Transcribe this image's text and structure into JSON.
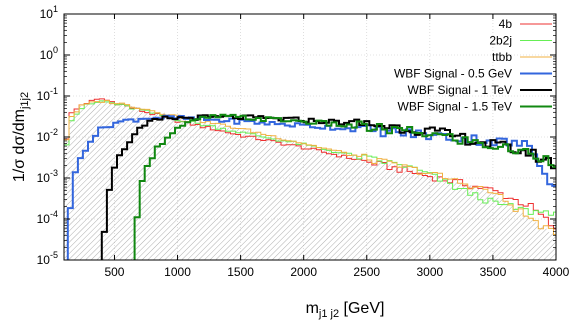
{
  "chart_data": {
    "type": "histogram",
    "x_label": {
      "main": "m",
      "sub": "j1 j2",
      "unit": " [GeV]"
    },
    "y_label": {
      "main": "1/σ dσ/dm",
      "sub": "j1j2"
    },
    "xlim": [
      100,
      4000
    ],
    "ylim": [
      1e-05,
      10
    ],
    "y_scale": "log",
    "x_ticks": [
      {
        "value": 500,
        "label": "500"
      },
      {
        "value": 1000,
        "label": "1000"
      },
      {
        "value": 1500,
        "label": "1500"
      },
      {
        "value": 2000,
        "label": "2000"
      },
      {
        "value": 2500,
        "label": "2500"
      },
      {
        "value": 3000,
        "label": "3000"
      },
      {
        "value": 3500,
        "label": "3500"
      },
      {
        "value": 4000,
        "label": "4000"
      }
    ],
    "y_ticks": [
      {
        "value": 10,
        "exp": "1"
      },
      {
        "value": 1,
        "exp": "0"
      },
      {
        "value": 0.1,
        "exp": "-1"
      },
      {
        "value": 0.01,
        "exp": "-2"
      },
      {
        "value": 0.001,
        "exp": "-3"
      },
      {
        "value": 0.0001,
        "exp": "-4"
      },
      {
        "value": 1e-05,
        "exp": "-5"
      }
    ],
    "y_tick_base": "10",
    "legend_position": "top-right",
    "hatched_background": "ttbb",
    "series": [
      {
        "name": "4b",
        "color": "#ee3030",
        "width": 1,
        "points": [
          [
            100,
            0.004
          ],
          [
            150,
            0.035
          ],
          [
            250,
            0.065
          ],
          [
            400,
            0.085
          ],
          [
            500,
            0.07
          ],
          [
            700,
            0.045
          ],
          [
            1000,
            0.025
          ],
          [
            1500,
            0.011
          ],
          [
            2000,
            0.0055
          ],
          [
            2500,
            0.0025
          ],
          [
            3000,
            0.0011
          ],
          [
            3500,
            0.0005
          ],
          [
            3800,
            0.0002
          ],
          [
            3950,
            8e-05
          ],
          [
            4000,
            5e-05
          ]
        ]
      },
      {
        "name": "2b2j",
        "color": "#66ee55",
        "width": 1,
        "points": [
          [
            100,
            0.003
          ],
          [
            150,
            0.025
          ],
          [
            250,
            0.055
          ],
          [
            400,
            0.075
          ],
          [
            500,
            0.065
          ],
          [
            700,
            0.046
          ],
          [
            1000,
            0.027
          ],
          [
            1500,
            0.013
          ],
          [
            2000,
            0.0065
          ],
          [
            2500,
            0.003
          ],
          [
            2800,
            0.002
          ],
          [
            3000,
            0.0012
          ],
          [
            3200,
            0.0006
          ],
          [
            3500,
            0.00025
          ],
          [
            3800,
            0.00015
          ],
          [
            4000,
            0.00015
          ]
        ]
      },
      {
        "name": "ttbb",
        "color": "#f0b040",
        "width": 1,
        "points": [
          [
            100,
            0.004
          ],
          [
            150,
            0.03
          ],
          [
            250,
            0.06
          ],
          [
            400,
            0.075
          ],
          [
            500,
            0.07
          ],
          [
            700,
            0.052
          ],
          [
            1000,
            0.032
          ],
          [
            1500,
            0.016
          ],
          [
            2000,
            0.007
          ],
          [
            2500,
            0.003
          ],
          [
            3000,
            0.0013
          ],
          [
            3500,
            0.00045
          ],
          [
            3800,
            0.0001
          ],
          [
            4000,
            4e-05
          ]
        ]
      },
      {
        "name": "WBF Signal - 0.5 GeV",
        "color": "#3366dd",
        "width": 2,
        "points": [
          [
            130,
            2e-05
          ],
          [
            150,
            0.0002
          ],
          [
            200,
            0.002
          ],
          [
            300,
            0.008
          ],
          [
            400,
            0.016
          ],
          [
            500,
            0.022
          ],
          [
            600,
            0.025
          ],
          [
            700,
            0.028
          ],
          [
            800,
            0.03
          ],
          [
            1000,
            0.029
          ],
          [
            1500,
            0.024
          ],
          [
            2000,
            0.019
          ],
          [
            2500,
            0.015
          ],
          [
            3000,
            0.011
          ],
          [
            3500,
            0.008
          ],
          [
            3800,
            0.006
          ],
          [
            4000,
            0.0005
          ]
        ]
      },
      {
        "name": "WBF Signal - 1 TeV",
        "color": "#000000",
        "width": 2,
        "points": [
          [
            400,
            1e-05
          ],
          [
            440,
            0.0003
          ],
          [
            500,
            0.002
          ],
          [
            600,
            0.007
          ],
          [
            700,
            0.015
          ],
          [
            800,
            0.024
          ],
          [
            900,
            0.028
          ],
          [
            1000,
            0.029
          ],
          [
            1200,
            0.03
          ],
          [
            1500,
            0.03
          ],
          [
            2000,
            0.026
          ],
          [
            2500,
            0.021
          ],
          [
            3000,
            0.014
          ],
          [
            3500,
            0.0065
          ],
          [
            3800,
            0.004
          ],
          [
            4000,
            0.002
          ]
        ]
      },
      {
        "name": "WBF Signal - 1.5 TeV",
        "color": "#118811",
        "width": 2,
        "points": [
          [
            660,
            1e-05
          ],
          [
            690,
            0.0003
          ],
          [
            750,
            0.002
          ],
          [
            850,
            0.006
          ],
          [
            950,
            0.013
          ],
          [
            1050,
            0.02
          ],
          [
            1200,
            0.028
          ],
          [
            1300,
            0.032
          ],
          [
            1500,
            0.03
          ],
          [
            2000,
            0.024
          ],
          [
            2500,
            0.017
          ],
          [
            3000,
            0.012
          ],
          [
            3500,
            0.006
          ],
          [
            3800,
            0.004
          ],
          [
            4000,
            0.0025
          ]
        ]
      }
    ]
  }
}
